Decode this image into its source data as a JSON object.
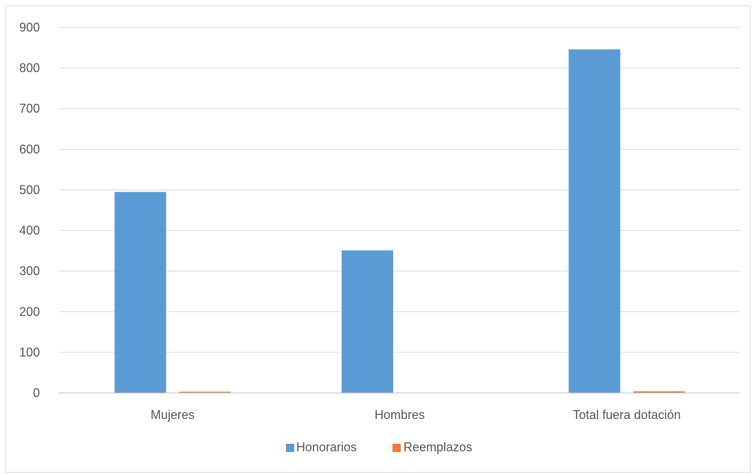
{
  "chart_data": {
    "type": "bar",
    "title": "",
    "xlabel": "",
    "ylabel": "",
    "categories": [
      "Mujeres",
      "Hombres",
      "Total fuera dotación"
    ],
    "series": [
      {
        "name": "Honorarios",
        "values": [
          495,
          351,
          846
        ],
        "color": "#5b9bd5"
      },
      {
        "name": "Reemplazos",
        "values": [
          3,
          0,
          4
        ],
        "color": "#ed7d31"
      }
    ],
    "ylim": [
      0,
      900
    ],
    "yticks": [
      0,
      100,
      200,
      300,
      400,
      500,
      600,
      700,
      800,
      900
    ],
    "grid": true,
    "legend_position": "bottom"
  },
  "colors": {
    "gridline": "#d9d9d9",
    "axis": "#bfbfbf",
    "text": "#595959"
  }
}
